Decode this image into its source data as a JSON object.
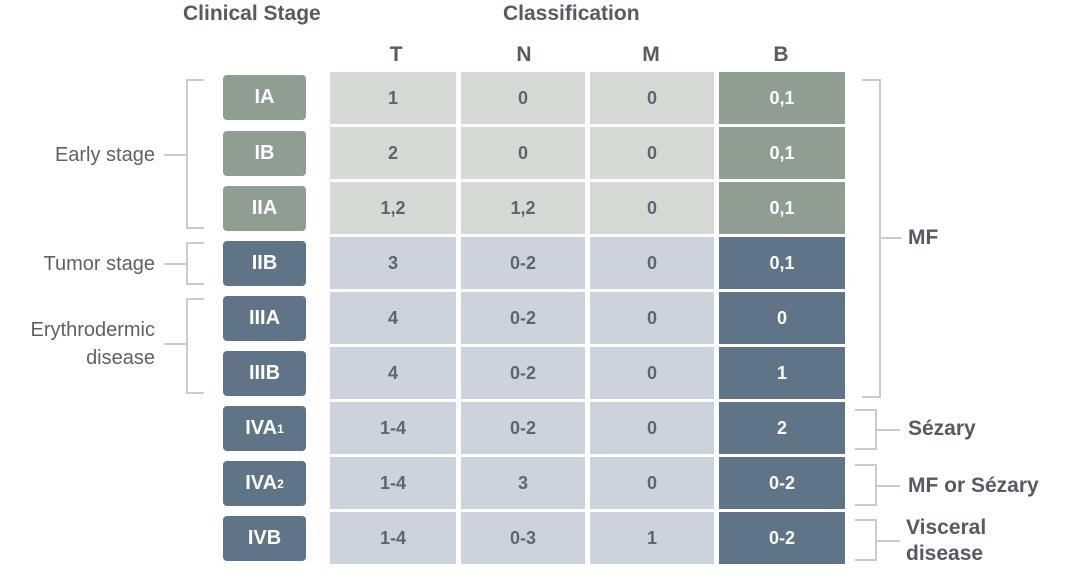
{
  "headers": {
    "clinical_stage": "Clinical Stage",
    "classification": "Classification",
    "columns": [
      "T",
      "N",
      "M",
      "B"
    ]
  },
  "rows": [
    {
      "stage": "IA",
      "sub": "",
      "T": "1",
      "N": "0",
      "M": "0",
      "B": "0,1",
      "tone": "green"
    },
    {
      "stage": "IB",
      "sub": "",
      "T": "2",
      "N": "0",
      "M": "0",
      "B": "0,1",
      "tone": "green"
    },
    {
      "stage": "IIA",
      "sub": "",
      "T": "1,2",
      "N": "1,2",
      "M": "0",
      "B": "0,1",
      "tone": "green"
    },
    {
      "stage": "IIB",
      "sub": "",
      "T": "3",
      "N": "0-2",
      "M": "0",
      "B": "0,1",
      "tone": "blue"
    },
    {
      "stage": "IIIA",
      "sub": "",
      "T": "4",
      "N": "0-2",
      "M": "0",
      "B": "0",
      "tone": "blue"
    },
    {
      "stage": "IIIB",
      "sub": "",
      "T": "4",
      "N": "0-2",
      "M": "0",
      "B": "1",
      "tone": "blue"
    },
    {
      "stage": "IVA",
      "sub": "1",
      "T": "1-4",
      "N": "0-2",
      "M": "0",
      "B": "2",
      "tone": "blue"
    },
    {
      "stage": "IVA",
      "sub": "2",
      "T": "1-4",
      "N": "3",
      "M": "0",
      "B": "0-2",
      "tone": "blue"
    },
    {
      "stage": "IVB",
      "sub": "",
      "T": "1-4",
      "N": "0-3",
      "M": "1",
      "B": "0-2",
      "tone": "blue"
    }
  ],
  "left_labels": {
    "early": "Early stage",
    "tumor": "Tumor stage",
    "erythro_line1": "Erythrodermic",
    "erythro_line2": "disease"
  },
  "right_labels": {
    "mf": "MF",
    "sezary": "Sézary",
    "mf_or_sezary": "MF or Sézary",
    "visceral_line1": "Visceral",
    "visceral_line2": "disease"
  },
  "colors": {
    "stage_green": "#909e92",
    "stage_blue": "#5f7587",
    "cell_light_green": "#d5dad5",
    "cell_light_blue": "#ccd3dc"
  }
}
